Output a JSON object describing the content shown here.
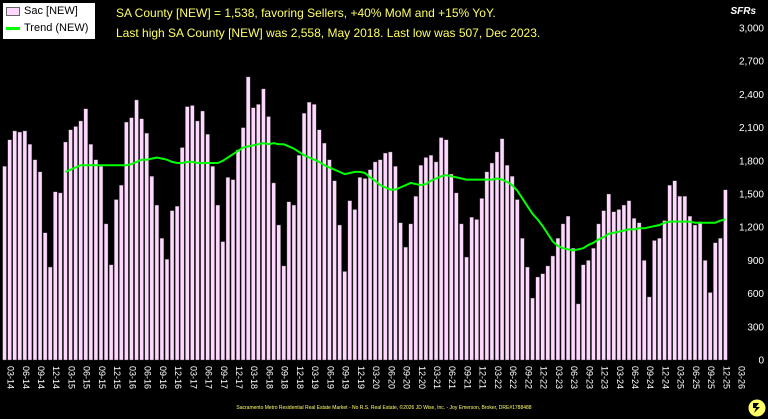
{
  "legend": {
    "bar_label": "Sac [NEW]",
    "line_label": "Trend (NEW)"
  },
  "headline": {
    "line1": "SA County [NEW] = 1,538, favoring Sellers, +40% MoM and +15% YoY.",
    "line2": "Last high SA County [NEW] was 2,558, May 2018. Last low was 507, Dec 2023."
  },
  "units_label": "SFRs",
  "footer": "Sacramento Metro Residential Real Estate Market - No R.S. Real Estate, ©2026 JD Wise, Inc. - Joy Emerson, Broker, DRE#1788488",
  "colors": {
    "bar": "#ffd8ff",
    "bar_edge": "#404040",
    "trend": "#00ff00",
    "headline": "#ffff66",
    "background": "#000000"
  },
  "logo_icon": "logo-icon",
  "chart_data": {
    "type": "bar",
    "ylim": [
      0,
      3000
    ],
    "yticks": [
      "0",
      "300",
      "600",
      "900",
      "1,200",
      "1,500",
      "1,800",
      "2,100",
      "2,400",
      "2,700",
      "3,000"
    ],
    "xtick_labels": [
      "03-14",
      "06-14",
      "09-14",
      "12-14",
      "03-15",
      "06-15",
      "09-15",
      "12-15",
      "03-16",
      "06-16",
      "09-16",
      "12-16",
      "03-17",
      "06-17",
      "09-17",
      "12-17",
      "03-18",
      "06-18",
      "09-18",
      "12-18",
      "03-19",
      "06-19",
      "09-19",
      "12-19",
      "03-20",
      "06-20",
      "09-20",
      "12-20",
      "03-21",
      "06-21",
      "09-21",
      "12-21",
      "03-22",
      "06-22",
      "09-22",
      "12-22",
      "03-23",
      "06-23",
      "09-23",
      "12-23",
      "03-24",
      "06-24",
      "09-24",
      "12-24",
      "03-25",
      "06-25",
      "09-25",
      "12-25",
      "03-26"
    ],
    "series": [
      {
        "name": "Sac [NEW]",
        "type": "bar",
        "values": [
          1750,
          1990,
          2070,
          2060,
          2070,
          1950,
          1810,
          1700,
          1150,
          840,
          1520,
          1510,
          1970,
          2080,
          2110,
          2160,
          2270,
          1950,
          1810,
          1750,
          1230,
          860,
          1450,
          1580,
          2150,
          2190,
          2350,
          2180,
          2050,
          1660,
          1400,
          1100,
          910,
          1350,
          1390,
          1920,
          2290,
          2300,
          2160,
          2250,
          2040,
          1750,
          1400,
          1070,
          1650,
          1630,
          1900,
          2100,
          2558,
          2280,
          2310,
          2450,
          2200,
          1600,
          1220,
          850,
          1430,
          1400,
          1850,
          2230,
          2330,
          2310,
          2080,
          1960,
          1810,
          1620,
          1220,
          800,
          1440,
          1360,
          1650,
          1640,
          1720,
          1790,
          1810,
          1870,
          1880,
          1750,
          1240,
          1020,
          1230,
          1480,
          1760,
          1830,
          1850,
          1790,
          2010,
          1990,
          1680,
          1510,
          1230,
          930,
          1290,
          1270,
          1460,
          1700,
          1780,
          1880,
          2000,
          1760,
          1660,
          1450,
          1100,
          840,
          560,
          750,
          780,
          850,
          940,
          1100,
          1230,
          1300,
          1010,
          507,
          860,
          900,
          1010,
          1230,
          1350,
          1500,
          1340,
          1360,
          1400,
          1440,
          1280,
          1240,
          900,
          570,
          1080,
          1100,
          1260,
          1580,
          1620,
          1480,
          1480,
          1300,
          1220,
          1250,
          900,
          610,
          1060,
          1100,
          1538
        ]
      },
      {
        "name": "Trend (NEW)",
        "type": "line",
        "values": [
          null,
          null,
          null,
          null,
          null,
          null,
          null,
          null,
          null,
          null,
          null,
          null,
          1700,
          1720,
          1740,
          1760,
          1760,
          1760,
          1760,
          1760,
          1760,
          1760,
          1760,
          1760,
          1760,
          1770,
          1790,
          1810,
          1810,
          1820,
          1830,
          1820,
          1810,
          1790,
          1780,
          1780,
          1790,
          1790,
          1780,
          1780,
          1780,
          1780,
          1780,
          1800,
          1830,
          1860,
          1890,
          1920,
          1930,
          1940,
          1950,
          1960,
          1950,
          1960,
          1950,
          1950,
          1930,
          1910,
          1880,
          1850,
          1830,
          1810,
          1790,
          1760,
          1740,
          1720,
          1700,
          1680,
          1690,
          1700,
          1700,
          1690,
          1650,
          1620,
          1580,
          1560,
          1540,
          1540,
          1560,
          1580,
          1600,
          1590,
          1580,
          1590,
          1620,
          1640,
          1660,
          1670,
          1660,
          1650,
          1640,
          1630,
          1630,
          1630,
          1630,
          1630,
          1630,
          1640,
          1630,
          1610,
          1580,
          1530,
          1460,
          1390,
          1320,
          1270,
          1210,
          1140,
          1070,
          1030,
          1010,
          1000,
          990,
          1000,
          1010,
          1040,
          1060,
          1090,
          1110,
          1140,
          1150,
          1160,
          1170,
          1180,
          1180,
          1190,
          1190,
          1200,
          1210,
          1220,
          1240,
          1250,
          1250,
          1250,
          1250,
          1250,
          1240,
          1240,
          1240,
          1240,
          1240,
          1260,
          1270
        ]
      }
    ]
  }
}
